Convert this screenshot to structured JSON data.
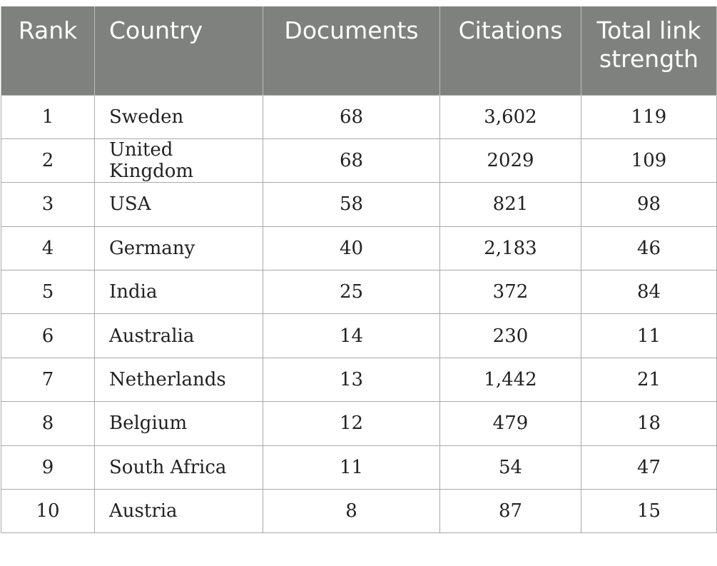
{
  "table": {
    "headers": {
      "rank": "Rank",
      "country": "Country",
      "documents": "Documents",
      "citations": "Citations",
      "total_link_strength": "Total link strength"
    },
    "rows": [
      {
        "rank": "1",
        "country": "Sweden",
        "documents": "68",
        "citations": "3,602",
        "total_link_strength": "119"
      },
      {
        "rank": "2",
        "country": "United Kingdom",
        "documents": "68",
        "citations": "2029",
        "total_link_strength": "109"
      },
      {
        "rank": "3",
        "country": "USA",
        "documents": "58",
        "citations": "821",
        "total_link_strength": "98"
      },
      {
        "rank": "4",
        "country": "Germany",
        "documents": "40",
        "citations": "2,183",
        "total_link_strength": "46"
      },
      {
        "rank": "5",
        "country": "India",
        "documents": "25",
        "citations": "372",
        "total_link_strength": "84"
      },
      {
        "rank": "6",
        "country": "Australia",
        "documents": "14",
        "citations": "230",
        "total_link_strength": "11"
      },
      {
        "rank": "7",
        "country": "Netherlands",
        "documents": "13",
        "citations": "1,442",
        "total_link_strength": "21"
      },
      {
        "rank": "8",
        "country": "Belgium",
        "documents": "12",
        "citations": "479",
        "total_link_strength": "18"
      },
      {
        "rank": "9",
        "country": "South Africa",
        "documents": "11",
        "citations": "54",
        "total_link_strength": "47"
      },
      {
        "rank": "10",
        "country": "Austria",
        "documents": "8",
        "citations": "87",
        "total_link_strength": "15"
      }
    ]
  }
}
